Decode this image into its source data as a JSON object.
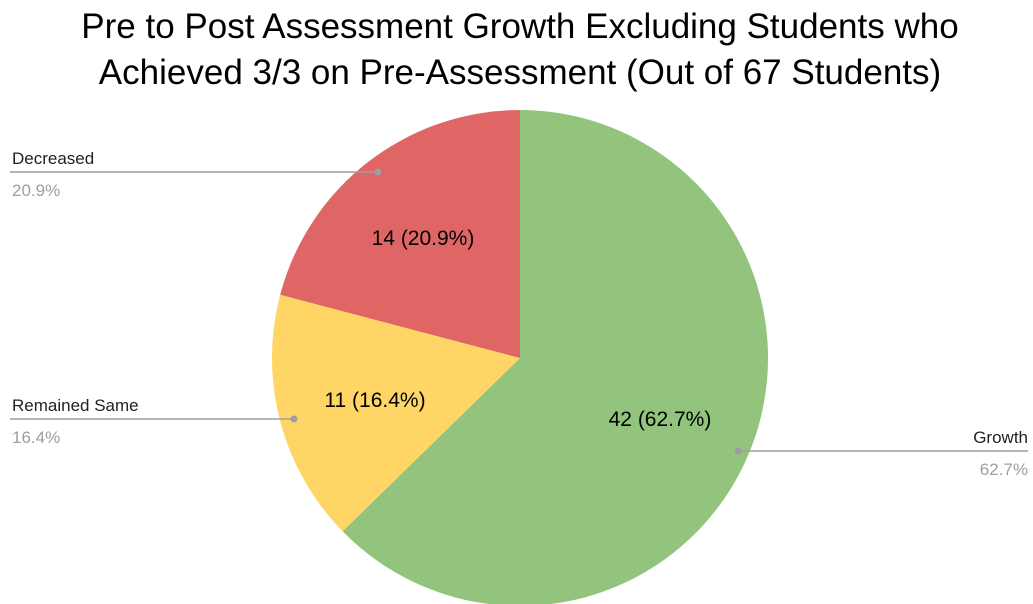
{
  "chart_data": {
    "type": "pie",
    "title_lines": [
      "Pre to Post Assessment Growth Excluding Students who",
      "Achieved 3/3 on Pre-Assessment (Out of 67 Students)"
    ],
    "slices": [
      {
        "label": "Growth",
        "value": 42,
        "percent_label": "62.7%",
        "slice_label": "42 (62.7%)",
        "color": "#93c47d"
      },
      {
        "label": "Remained Same",
        "value": 11,
        "percent_label": "16.4%",
        "slice_label": "11 (16.4%)",
        "color": "#ffd666"
      },
      {
        "label": "Decreased",
        "value": 14,
        "percent_label": "20.9%",
        "slice_label": "14 (20.9%)",
        "color": "#e06666"
      }
    ],
    "legend_position": "outside-callouts"
  }
}
